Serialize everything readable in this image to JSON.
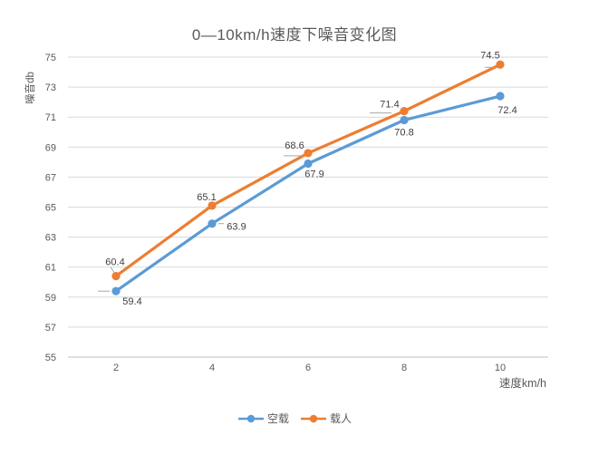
{
  "chart_data": {
    "type": "line",
    "title": "0—10km/h速度下噪音变化图",
    "xlabel": "速度km/h",
    "ylabel": "噪音db",
    "categories": [
      2,
      4,
      6,
      8,
      10
    ],
    "series": [
      {
        "name": "空载",
        "color": "#5B9BD5",
        "values": [
          59.4,
          63.9,
          67.9,
          70.8,
          72.4
        ],
        "label_position": "below"
      },
      {
        "name": "载人",
        "color": "#ED7D31",
        "values": [
          60.4,
          65.1,
          68.6,
          71.4,
          74.5
        ],
        "label_position": "above"
      }
    ],
    "ylim": [
      55,
      75
    ],
    "ytick_step": 2,
    "grid": "horizontal",
    "legend_position": "bottom",
    "colors": {
      "gridline": "#D9D9D9",
      "axis_line": "#BFBFBF",
      "tick_text": "#595959",
      "title_text": "#595959",
      "data_label_text": "#404040",
      "leader_line": "#A6A6A6",
      "background": "#FFFFFF"
    }
  }
}
